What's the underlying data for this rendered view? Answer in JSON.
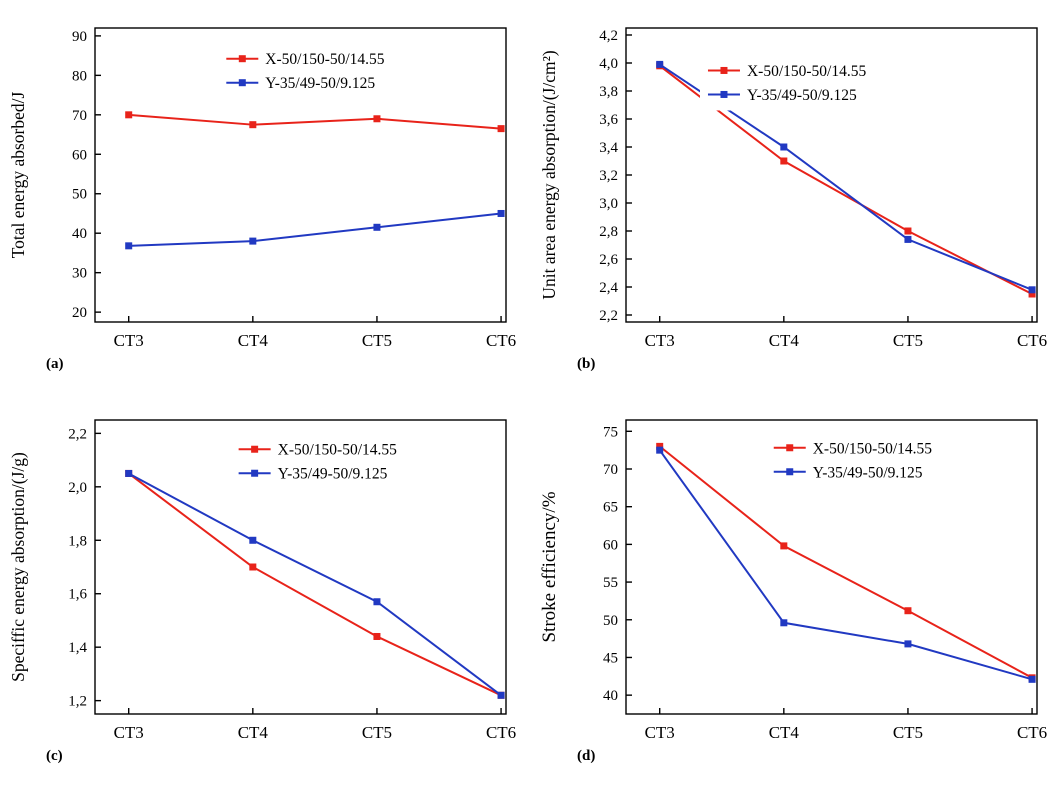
{
  "figure": {
    "background": "#ffffff",
    "axis_color": "#000000",
    "colors": {
      "red": "#e8231a",
      "blue": "#2139c2"
    }
  },
  "chart_data": [
    {
      "type": "line",
      "panel_label": "(a)",
      "title": "",
      "xlabel": "",
      "ylabel": "Total energy absorbed/J",
      "ylabel_size": 17.5,
      "categories": [
        "CT3",
        "CT4",
        "CT5",
        "CT6"
      ],
      "ylim": [
        17.5,
        92
      ],
      "yticks": [
        20,
        30,
        40,
        50,
        60,
        70,
        80,
        90
      ],
      "ytick_labels": [
        "20",
        "30",
        "40",
        "50",
        "60",
        "70",
        "80",
        "90"
      ],
      "series": [
        {
          "name": "X-50/150-50/14.55",
          "color_key": "red",
          "values": [
            70,
            67.5,
            69,
            66.5
          ]
        },
        {
          "name": "Y-35/49-50/9.125",
          "color_key": "blue",
          "values": [
            36.8,
            38,
            41.5,
            45
          ]
        }
      ],
      "legend": {
        "x": 0.3,
        "y": 0.05,
        "position": "top-center-right"
      }
    },
    {
      "type": "line",
      "panel_label": "(b)",
      "title": "",
      "xlabel": "",
      "ylabel": "Unit area energy absorption/(J/cm²)",
      "ylabel_size": 17.5,
      "categories": [
        "CT3",
        "CT4",
        "CT5",
        "CT6"
      ],
      "ylim": [
        2.15,
        4.25
      ],
      "yticks": [
        2.2,
        2.4,
        2.6,
        2.8,
        3.0,
        3.2,
        3.4,
        3.6,
        3.8,
        4.0,
        4.2
      ],
      "ytick_labels": [
        "2,2",
        "2,4",
        "2,6",
        "2,8",
        "3,0",
        "3,2",
        "3,4",
        "3,6",
        "3,8",
        "4,0",
        "4,2"
      ],
      "series": [
        {
          "name": "X-50/150-50/14.55",
          "color_key": "red",
          "values": [
            3.98,
            3.3,
            2.8,
            2.35
          ]
        },
        {
          "name": "Y-35/49-50/9.125",
          "color_key": "blue",
          "values": [
            3.99,
            3.4,
            2.74,
            2.38
          ]
        }
      ],
      "legend": {
        "x": 0.18,
        "y": 0.09,
        "position": "top-right"
      }
    },
    {
      "type": "line",
      "panel_label": "(c)",
      "title": "",
      "xlabel": "",
      "ylabel": "Speciffic energy absorption/(J/g)",
      "ylabel_size": 17.5,
      "categories": [
        "CT3",
        "CT4",
        "CT5",
        "CT6"
      ],
      "ylim": [
        1.15,
        2.25
      ],
      "yticks": [
        1.2,
        1.4,
        1.6,
        1.8,
        2.0,
        2.2
      ],
      "ytick_labels": [
        "1,2",
        "1,4",
        "1,6",
        "1,8",
        "2,0",
        "2,2"
      ],
      "series": [
        {
          "name": "X-50/150-50/14.55",
          "color_key": "red",
          "values": [
            2.05,
            1.7,
            1.44,
            1.22
          ]
        },
        {
          "name": "Y-35/49-50/9.125",
          "color_key": "blue",
          "values": [
            2.05,
            1.8,
            1.57,
            1.22
          ]
        }
      ],
      "legend": {
        "x": 0.33,
        "y": 0.045,
        "position": "top-right"
      }
    },
    {
      "type": "line",
      "panel_label": "(d)",
      "title": "",
      "xlabel": "",
      "ylabel": "Stroke efficiency/%",
      "ylabel_size": 19,
      "categories": [
        "CT3",
        "CT4",
        "CT5",
        "CT6"
      ],
      "ylim": [
        37.5,
        76.5
      ],
      "yticks": [
        40,
        45,
        50,
        55,
        60,
        65,
        70,
        75
      ],
      "ytick_labels": [
        "40",
        "45",
        "50",
        "55",
        "60",
        "65",
        "70",
        "75"
      ],
      "series": [
        {
          "name": "X-50/150-50/14.55",
          "color_key": "red",
          "values": [
            73,
            59.8,
            51.2,
            42.3
          ]
        },
        {
          "name": "Y-35/49-50/9.125",
          "color_key": "blue",
          "values": [
            72.5,
            49.6,
            46.8,
            42.1
          ]
        }
      ],
      "legend": {
        "x": 0.34,
        "y": 0.04,
        "position": "top-right"
      }
    }
  ]
}
